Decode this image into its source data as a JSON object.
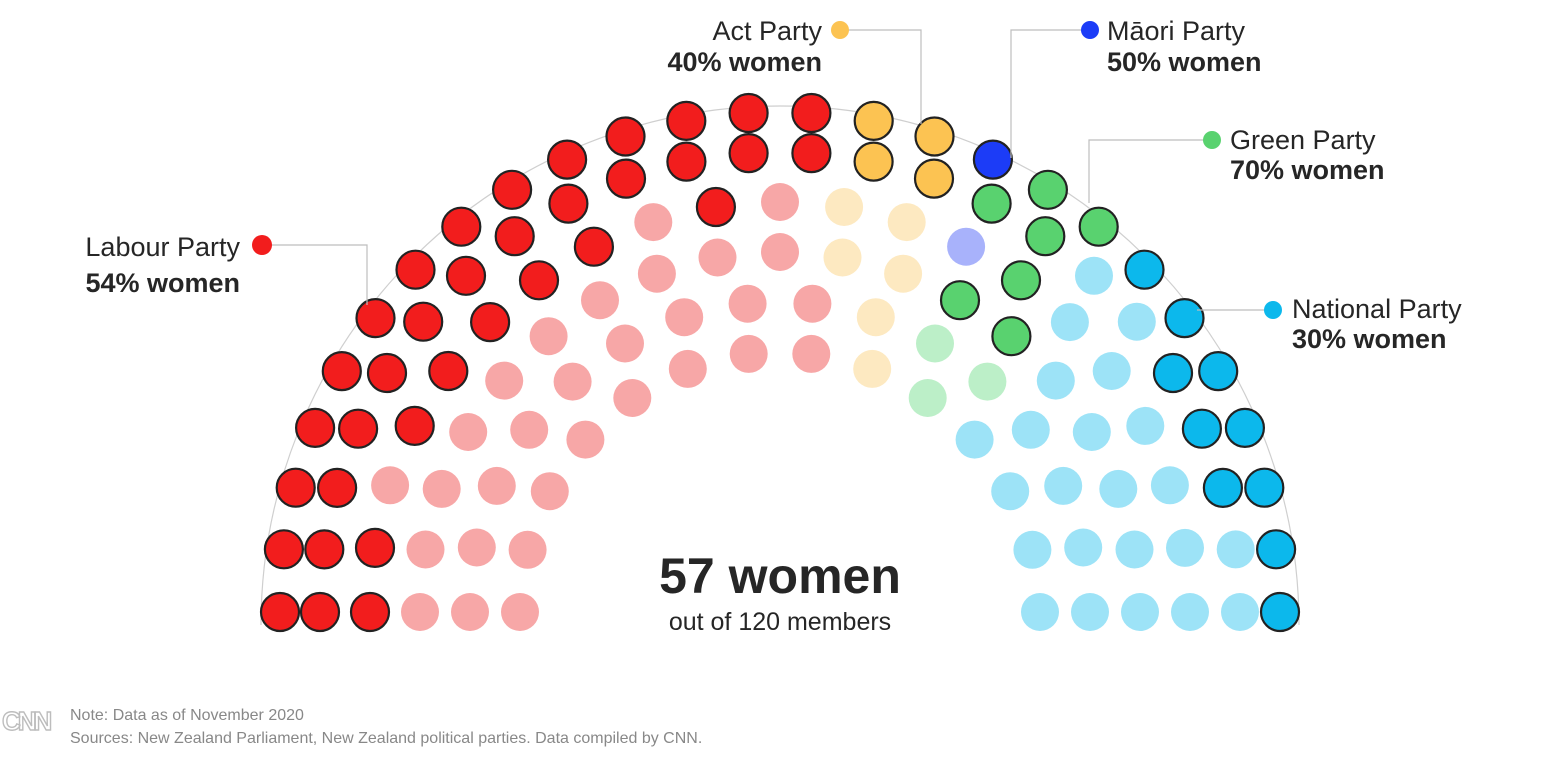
{
  "chart_data": {
    "type": "parliament",
    "title": "",
    "total": {
      "main": "57 women",
      "sub": "out of 120 members"
    },
    "parties": [
      {
        "key": "labour",
        "name": "Labour Party",
        "pct_label": "54% women",
        "seats": 65,
        "women": 35,
        "color": "#f21d1d",
        "light": "#f7a7a7"
      },
      {
        "key": "act",
        "name": "Act Party",
        "pct_label": "40% women",
        "seats": 10,
        "women": 4,
        "color": "#fcc352",
        "light": "#fde9c1"
      },
      {
        "key": "maori",
        "name": "Māori Party",
        "pct_label": "50% women",
        "seats": 2,
        "women": 1,
        "color": "#1c3cf7",
        "light": "#a8b2fb"
      },
      {
        "key": "green",
        "name": "Green Party",
        "pct_label": "70% women",
        "seats": 10,
        "women": 7,
        "color": "#59d26f",
        "light": "#bcefc8"
      },
      {
        "key": "national",
        "name": "National Party",
        "pct_label": "30% women",
        "seats": 33,
        "women": 10,
        "color": "#0cb8ec",
        "light": "#9de3f7"
      }
    ]
  },
  "footer": {
    "note": "Note: Data as of November 2020",
    "sources": "Sources: New Zealand Parliament, New Zealand political parties. Data compiled by CNN.",
    "logo": "CNN"
  }
}
